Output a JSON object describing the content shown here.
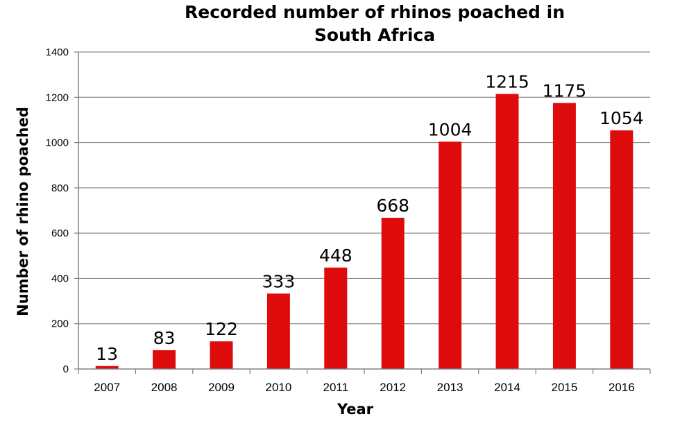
{
  "chart_data": {
    "type": "bar",
    "title_lines": [
      "Recorded number of rhinos poached in",
      "South Africa"
    ],
    "xlabel": "Year",
    "ylabel": "Number of rhino  poached",
    "categories": [
      "2007",
      "2008",
      "2009",
      "2010",
      "2011",
      "2012",
      "2013",
      "2014",
      "2015",
      "2016"
    ],
    "values": [
      13,
      83,
      122,
      333,
      448,
      668,
      1004,
      1215,
      1175,
      1054
    ],
    "data_labels": [
      "13",
      "83",
      "122",
      "333",
      "448",
      "668",
      "1004",
      "1215",
      "1175",
      "1054"
    ],
    "ylim": [
      0,
      1400
    ],
    "yticks": [
      0,
      200,
      400,
      600,
      800,
      1000,
      1200,
      1400
    ],
    "grid": true,
    "bar_color": "#DD0B0B",
    "legend": "none"
  }
}
